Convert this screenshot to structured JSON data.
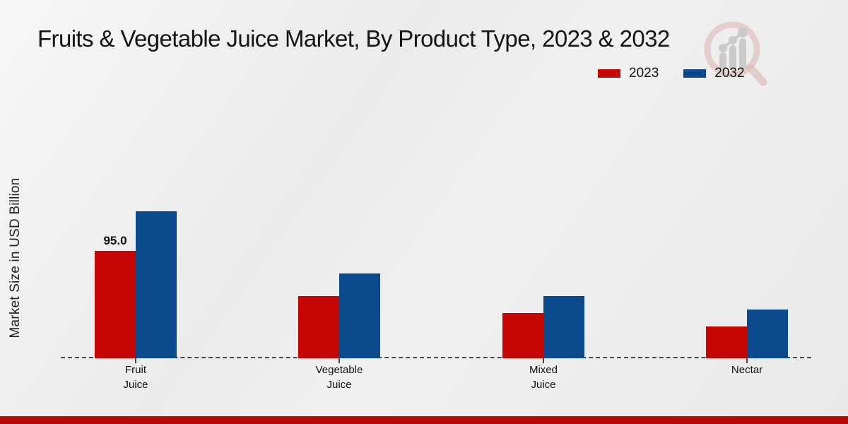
{
  "title": "Fruits & Vegetable Juice Market, By Product Type, 2023 & 2032",
  "y_axis_label": "Market Size in USD Billion",
  "legend": {
    "items": [
      {
        "label": "2023",
        "color": "#c60505"
      },
      {
        "label": "2032",
        "color": "#0b4a8c"
      }
    ]
  },
  "chart_data": {
    "type": "bar",
    "title": "Fruits & Vegetable Juice Market, By Product Type, 2023 & 2032",
    "xlabel": "",
    "ylabel": "Market Size in USD Billion",
    "categories": [
      "Fruit Juice",
      "Vegetable Juice",
      "Mixed Juice",
      "Nectar"
    ],
    "series": [
      {
        "name": "2023",
        "color": "#c60505",
        "values": [
          95.0,
          55,
          40,
          28
        ],
        "value_labels": [
          "95.0",
          "",
          "",
          ""
        ]
      },
      {
        "name": "2032",
        "color": "#0b4a8c",
        "values": [
          130,
          75,
          55,
          43
        ],
        "value_labels": [
          "",
          "",
          "",
          ""
        ]
      }
    ],
    "ylim": [
      0,
      135
    ],
    "grid": false,
    "y_ticks_shown": false,
    "legend_position": "top-right",
    "baseline_style": "dashed"
  },
  "icons": {
    "watermark": "magnifier-bar-chart-logo"
  },
  "footer": {
    "accent_color": "#b70707"
  }
}
